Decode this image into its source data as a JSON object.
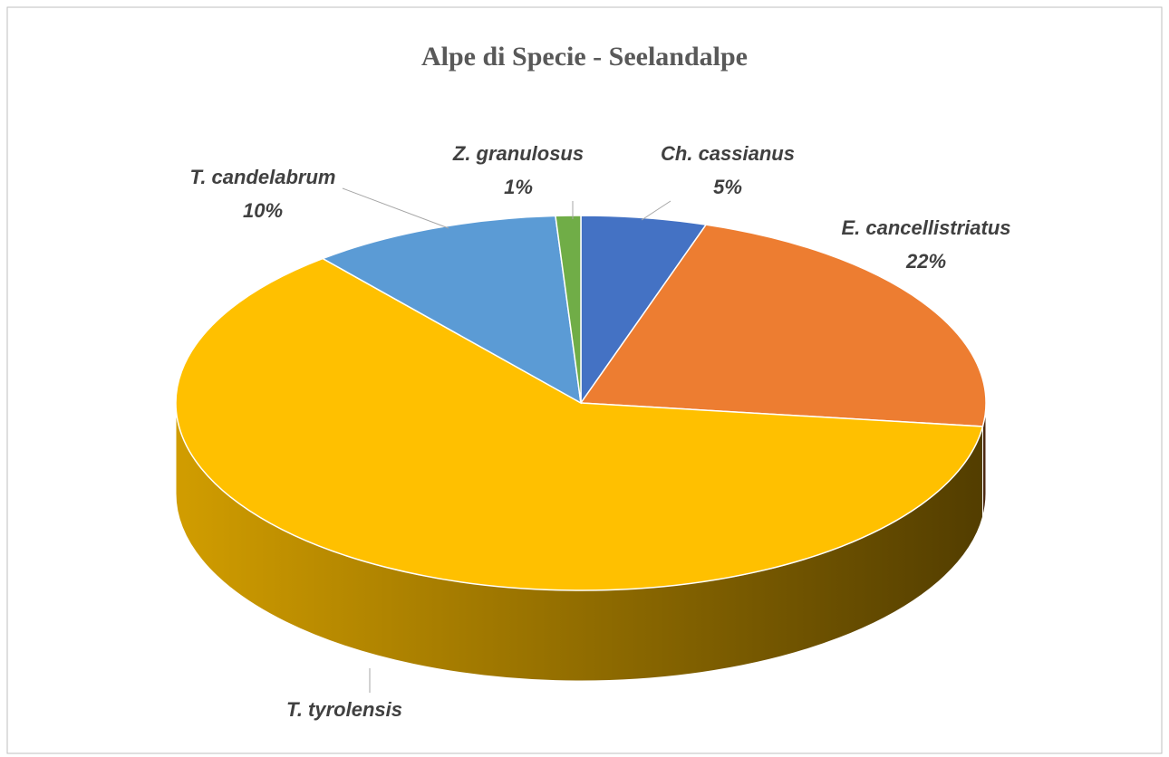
{
  "chart_data": {
    "type": "pie",
    "title": "Alpe di Specie - Seelandalpe",
    "categories": [
      "Ch. cassianus",
      "E. cancellistriatus",
      "T. tyrolensis",
      "T. candelabrum",
      "Z. granulosus"
    ],
    "values": [
      5,
      22,
      62,
      10,
      1
    ],
    "value_labels": [
      "5%",
      "22%",
      null,
      "10%",
      "1%"
    ],
    "colors": [
      "#4472c4",
      "#ed7d31",
      "#ffc000",
      "#5b9bd5",
      "#70ad47"
    ]
  }
}
